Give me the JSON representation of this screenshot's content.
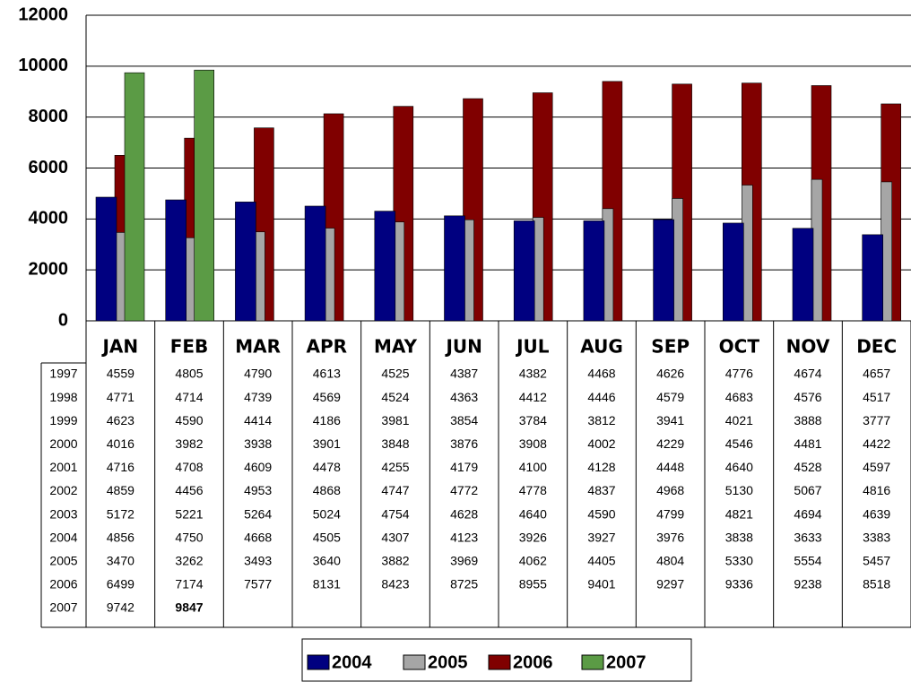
{
  "chart_data": {
    "type": "bar",
    "categories": [
      "JAN",
      "FEB",
      "MAR",
      "APR",
      "MAY",
      "JUN",
      "JUL",
      "AUG",
      "SEP",
      "OCT",
      "NOV",
      "DEC"
    ],
    "ylim": [
      0,
      12000
    ],
    "yticks": [
      0,
      2000,
      4000,
      6000,
      8000,
      10000,
      12000
    ],
    "grid": true,
    "series": [
      {
        "name": "2004",
        "color": "#000080",
        "values": [
          4856,
          4750,
          4668,
          4505,
          4307,
          4123,
          3926,
          3927,
          3976,
          3838,
          3633,
          3383
        ]
      },
      {
        "name": "2005",
        "color": "#a6a6a6",
        "values": [
          3470,
          3262,
          3493,
          3640,
          3882,
          3969,
          4062,
          4405,
          4804,
          5330,
          5554,
          5457
        ]
      },
      {
        "name": "2006",
        "color": "#800000",
        "values": [
          6499,
          7174,
          7577,
          8131,
          8423,
          8725,
          8955,
          9401,
          9297,
          9336,
          9238,
          8518
        ]
      },
      {
        "name": "2007",
        "color": "#5b9b45",
        "values": [
          9742,
          9847,
          null,
          null,
          null,
          null,
          null,
          null,
          null,
          null,
          null,
          null
        ],
        "label_colors": [
          null,
          "#008000",
          null,
          null,
          null,
          null,
          null,
          null,
          null,
          null,
          null,
          null
        ]
      }
    ],
    "table_rows": [
      {
        "label": "1997",
        "values": [
          4559,
          4805,
          4790,
          4613,
          4525,
          4387,
          4382,
          4468,
          4626,
          4776,
          4674,
          4657
        ]
      },
      {
        "label": "1998",
        "values": [
          4771,
          4714,
          4739,
          4569,
          4524,
          4363,
          4412,
          4446,
          4579,
          4683,
          4576,
          4517
        ]
      },
      {
        "label": "1999",
        "values": [
          4623,
          4590,
          4414,
          4186,
          3981,
          3854,
          3784,
          3812,
          3941,
          4021,
          3888,
          3777
        ]
      },
      {
        "label": "2000",
        "values": [
          4016,
          3982,
          3938,
          3901,
          3848,
          3876,
          3908,
          4002,
          4229,
          4546,
          4481,
          4422
        ]
      },
      {
        "label": "2001",
        "values": [
          4716,
          4708,
          4609,
          4478,
          4255,
          4179,
          4100,
          4128,
          4448,
          4640,
          4528,
          4597
        ]
      },
      {
        "label": "2002",
        "values": [
          4859,
          4456,
          4953,
          4868,
          4747,
          4772,
          4778,
          4837,
          4968,
          5130,
          5067,
          4816
        ]
      },
      {
        "label": "2003",
        "values": [
          5172,
          5221,
          5264,
          5024,
          4754,
          4628,
          4640,
          4590,
          4799,
          4821,
          4694,
          4639
        ]
      }
    ]
  }
}
